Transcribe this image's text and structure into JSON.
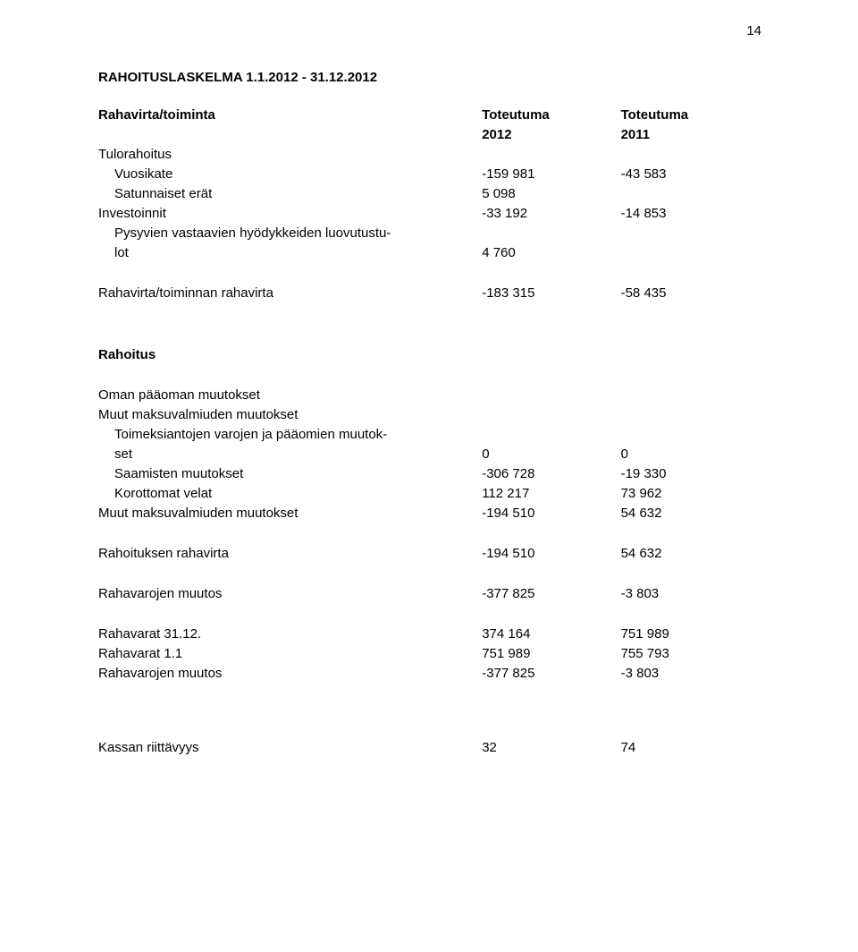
{
  "page_number": "14",
  "title": "RAHOITUSLASKELMA 1.1.2012 - 31.12.2012",
  "header": {
    "subject_label": "Rahavirta/toiminta",
    "col1_top": "Toteutuma",
    "col1_bottom": "2012",
    "col2_top": "Toteutuma",
    "col2_bottom": "2011"
  },
  "section_tulorahoitus": "Tulorahoitus",
  "rows1": {
    "vuosikate": {
      "label": "Vuosikate",
      "v1": "-159 981",
      "v2": "-43 583"
    },
    "satunnaiset": {
      "label": "Satunnaiset erät",
      "v1": "5 098",
      "v2": ""
    },
    "investoinnit": {
      "label": "Investoinnit",
      "v1": "-33 192",
      "v2": "-14 853"
    },
    "pysyvien_line1": "Pysyvien vastaavien hyödykkeiden luovutustu-",
    "pysyvien_line2": {
      "label": "lot",
      "v1": "4 760",
      "v2": ""
    }
  },
  "rahavirta_toiminnan": {
    "label": "Rahavirta/toiminnan rahavirta",
    "v1": "-183 315",
    "v2": "-58 435"
  },
  "rahoitus_heading": "Rahoitus",
  "oman_paaoman": "Oman pääoman muutokset",
  "muut_maksu_heading": "Muut maksuvalmiuden muutokset",
  "rows2": {
    "toimeksiantojen_line1": "Toimeksiantojen varojen ja pääomien muutok-",
    "toimeksiantojen_line2": {
      "label": "set",
      "v1": "0",
      "v2": "0"
    },
    "saamisten": {
      "label": "Saamisten muutokset",
      "v1": "-306 728",
      "v2": "-19 330"
    },
    "korottomat": {
      "label": "Korottomat velat",
      "v1": "112 217",
      "v2": "73 962"
    },
    "muut_maksu": {
      "label": "Muut maksuvalmiuden muutokset",
      "v1": "-194 510",
      "v2": "54 632"
    }
  },
  "rahoituksen_rahavirta": {
    "label": "Rahoituksen rahavirta",
    "v1": "-194 510",
    "v2": "54 632"
  },
  "rahavarojen_muutos1": {
    "label": "Rahavarojen muutos",
    "v1": "-377 825",
    "v2": "-3 803"
  },
  "rahavarat_3112": {
    "label": "Rahavarat 31.12.",
    "v1": "374 164",
    "v2": "751 989"
  },
  "rahavarat_11": {
    "label": "Rahavarat 1.1",
    "v1": "751 989",
    "v2": "755 793"
  },
  "rahavarojen_muutos2": {
    "label": "Rahavarojen muutos",
    "v1": "-377 825",
    "v2": "-3 803"
  },
  "kassan": {
    "label": "Kassan riittävyys",
    "v1": "32",
    "v2": "74"
  }
}
